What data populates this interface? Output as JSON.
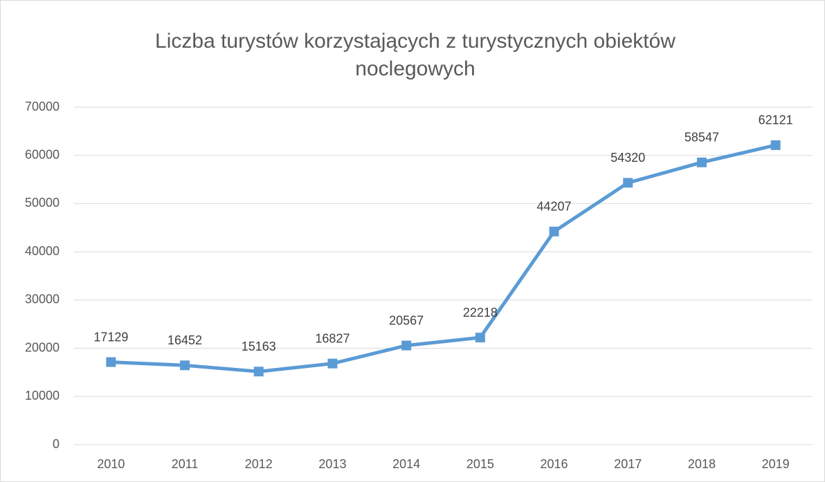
{
  "chart_data": {
    "type": "line",
    "title": "Liczba turystów korzystających z turystycznych obiektów noclegowych",
    "categories": [
      "2010",
      "2011",
      "2012",
      "2013",
      "2014",
      "2015",
      "2016",
      "2017",
      "2018",
      "2019"
    ],
    "values": [
      17129,
      16452,
      15163,
      16827,
      20567,
      22218,
      44207,
      54320,
      58547,
      62121
    ],
    "color": "#5b9bd5",
    "ylim": [
      0,
      70000
    ],
    "yticks": [
      0,
      10000,
      20000,
      30000,
      40000,
      50000,
      60000,
      70000
    ],
    "grid": true,
    "data_labels": true
  }
}
